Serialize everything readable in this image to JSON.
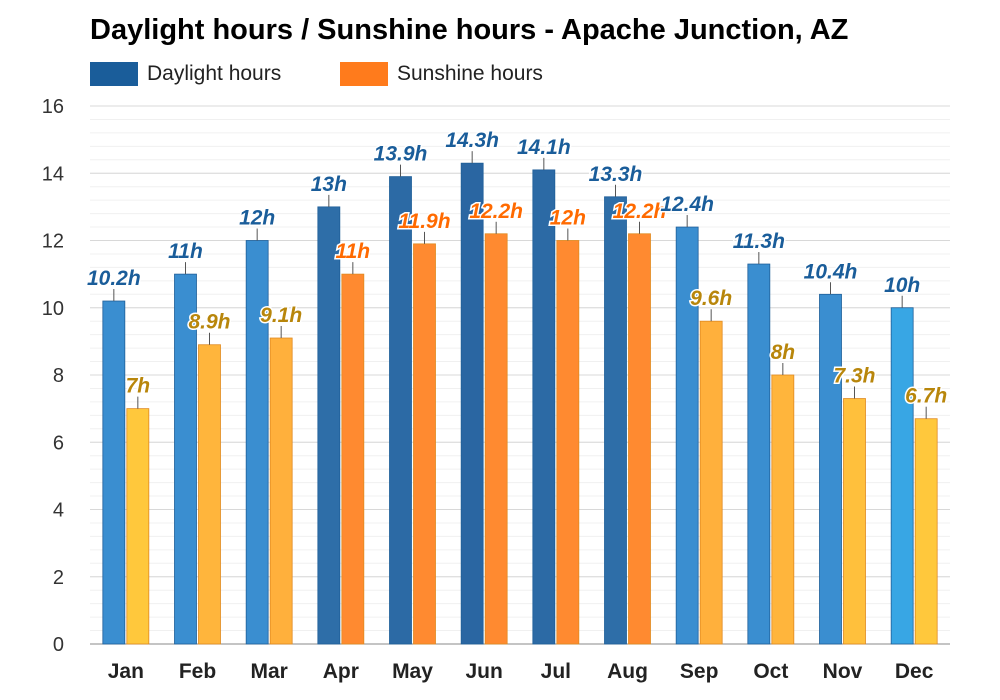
{
  "chart_data": {
    "type": "bar",
    "title": "Daylight hours / Sunshine hours - Apache Junction, AZ",
    "categories": [
      "Jan",
      "Feb",
      "Mar",
      "Apr",
      "May",
      "Jun",
      "Jul",
      "Aug",
      "Sep",
      "Oct",
      "Nov",
      "Dec"
    ],
    "series": [
      {
        "name": "Daylight hours",
        "color": "#1a5d9a",
        "values": [
          10.2,
          11,
          12,
          13,
          13.9,
          14.3,
          14.1,
          13.3,
          12.4,
          11.3,
          10.4,
          10
        ],
        "labels": [
          "10.2h",
          "11h",
          "12h",
          "13h",
          "13.9h",
          "14.3h",
          "14.1h",
          "13.3h",
          "12.4h",
          "11.3h",
          "10.4h",
          "10h"
        ],
        "bar_colors": [
          "#3a8ed0",
          "#3a8ed0",
          "#3a8ed0",
          "#2e6ea8",
          "#2c6aa5",
          "#2a66a2",
          "#2c6aa5",
          "#2e6ea8",
          "#3a8ed0",
          "#3a8ed0",
          "#3a8ed0",
          "#38a6e4"
        ],
        "label_color": "#1a5d9a"
      },
      {
        "name": "Sunshine hours",
        "color": "#ff7b1c",
        "values": [
          7,
          8.9,
          9.1,
          11,
          11.9,
          12.2,
          12,
          12.2,
          9.6,
          8,
          7.3,
          6.7
        ],
        "labels": [
          "7h",
          "8.9h",
          "9.1h",
          "11h",
          "11.9h",
          "12.2h",
          "12h",
          "12.2h",
          "9.6h",
          "8h",
          "7.3h",
          "6.7h"
        ],
        "bar_colors": [
          "#ffc83c",
          "#ffb53c",
          "#ffb03c",
          "#ff8a30",
          "#ff8a30",
          "#ff8a30",
          "#ff8a30",
          "#ff8a30",
          "#ffb03c",
          "#ffb53c",
          "#ffc03c",
          "#ffc83c"
        ],
        "label_colors": [
          "#b8860b",
          "#b8860b",
          "#b8860b",
          "#ff6a00",
          "#ff6a00",
          "#ff6a00",
          "#ff6a00",
          "#ff6a00",
          "#b8860b",
          "#b8860b",
          "#b8860b",
          "#b8860b"
        ]
      }
    ],
    "ylim": [
      0,
      16
    ],
    "yticks": [
      "0",
      "2",
      "4",
      "6",
      "8",
      "10",
      "12",
      "14",
      "16"
    ],
    "grid": true,
    "legend": "top-left"
  }
}
